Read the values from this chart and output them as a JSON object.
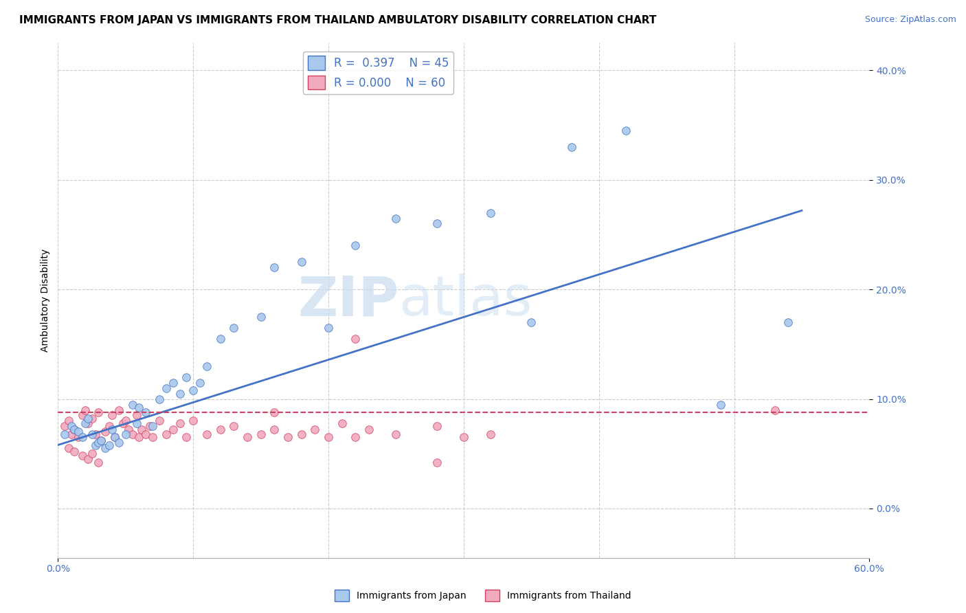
{
  "title": "IMMIGRANTS FROM JAPAN VS IMMIGRANTS FROM THAILAND AMBULATORY DISABILITY CORRELATION CHART",
  "source": "Source: ZipAtlas.com",
  "ylabel": "Ambulatory Disability",
  "yticks": [
    "0.0%",
    "10.0%",
    "20.0%",
    "30.0%",
    "40.0%"
  ],
  "ytick_vals": [
    0.0,
    0.1,
    0.2,
    0.3,
    0.4
  ],
  "xlim": [
    0.0,
    0.6
  ],
  "ylim": [
    -0.045,
    0.425
  ],
  "legend_japan_R": "0.397",
  "legend_japan_N": "45",
  "legend_thailand_R": "0.000",
  "legend_thailand_N": "60",
  "color_japan": "#A8C8EC",
  "color_thailand": "#F2AABE",
  "color_japan_line": "#4472C4",
  "color_thailand_line": "#D04060",
  "background_color": "#FFFFFF",
  "watermark_zip": "ZIP",
  "watermark_atlas": "atlas",
  "japan_scatter_x": [
    0.005,
    0.01,
    0.012,
    0.015,
    0.018,
    0.02,
    0.022,
    0.025,
    0.028,
    0.03,
    0.032,
    0.035,
    0.038,
    0.04,
    0.042,
    0.045,
    0.05,
    0.055,
    0.058,
    0.06,
    0.065,
    0.07,
    0.075,
    0.08,
    0.085,
    0.09,
    0.095,
    0.1,
    0.105,
    0.11,
    0.12,
    0.13,
    0.15,
    0.16,
    0.18,
    0.2,
    0.22,
    0.25,
    0.28,
    0.32,
    0.35,
    0.38,
    0.42,
    0.49,
    0.54
  ],
  "japan_scatter_y": [
    0.068,
    0.075,
    0.072,
    0.07,
    0.065,
    0.078,
    0.082,
    0.068,
    0.058,
    0.06,
    0.062,
    0.055,
    0.058,
    0.072,
    0.065,
    0.06,
    0.068,
    0.095,
    0.078,
    0.092,
    0.088,
    0.075,
    0.1,
    0.11,
    0.115,
    0.105,
    0.12,
    0.108,
    0.115,
    0.13,
    0.155,
    0.165,
    0.175,
    0.22,
    0.225,
    0.165,
    0.24,
    0.265,
    0.26,
    0.27,
    0.17,
    0.33,
    0.345,
    0.095,
    0.17
  ],
  "thailand_scatter_x": [
    0.005,
    0.008,
    0.01,
    0.012,
    0.015,
    0.018,
    0.02,
    0.022,
    0.025,
    0.028,
    0.03,
    0.032,
    0.035,
    0.038,
    0.04,
    0.042,
    0.045,
    0.048,
    0.05,
    0.052,
    0.055,
    0.058,
    0.06,
    0.062,
    0.065,
    0.068,
    0.07,
    0.075,
    0.08,
    0.085,
    0.09,
    0.095,
    0.1,
    0.11,
    0.12,
    0.13,
    0.14,
    0.15,
    0.16,
    0.17,
    0.18,
    0.19,
    0.2,
    0.21,
    0.22,
    0.23,
    0.25,
    0.28,
    0.3,
    0.32,
    0.008,
    0.012,
    0.018,
    0.022,
    0.025,
    0.03,
    0.16,
    0.22,
    0.28,
    0.53
  ],
  "thailand_scatter_y": [
    0.075,
    0.08,
    0.068,
    0.072,
    0.065,
    0.085,
    0.09,
    0.078,
    0.082,
    0.068,
    0.088,
    0.062,
    0.07,
    0.075,
    0.085,
    0.065,
    0.09,
    0.078,
    0.08,
    0.072,
    0.068,
    0.085,
    0.065,
    0.072,
    0.068,
    0.075,
    0.065,
    0.08,
    0.068,
    0.072,
    0.078,
    0.065,
    0.08,
    0.068,
    0.072,
    0.075,
    0.065,
    0.068,
    0.072,
    0.065,
    0.068,
    0.072,
    0.065,
    0.078,
    0.065,
    0.072,
    0.068,
    0.075,
    0.065,
    0.068,
    0.055,
    0.052,
    0.048,
    0.045,
    0.05,
    0.042,
    0.088,
    0.155,
    0.042,
    0.09
  ],
  "japan_line_x": [
    0.0,
    0.55
  ],
  "japan_line_y": [
    0.058,
    0.272
  ],
  "thailand_line_x": [
    0.0,
    0.6
  ],
  "thailand_line_y": [
    0.088,
    0.088
  ],
  "grid_color": "#CCCCCC",
  "title_fontsize": 11,
  "axis_fontsize": 10,
  "legend_fontsize": 12
}
